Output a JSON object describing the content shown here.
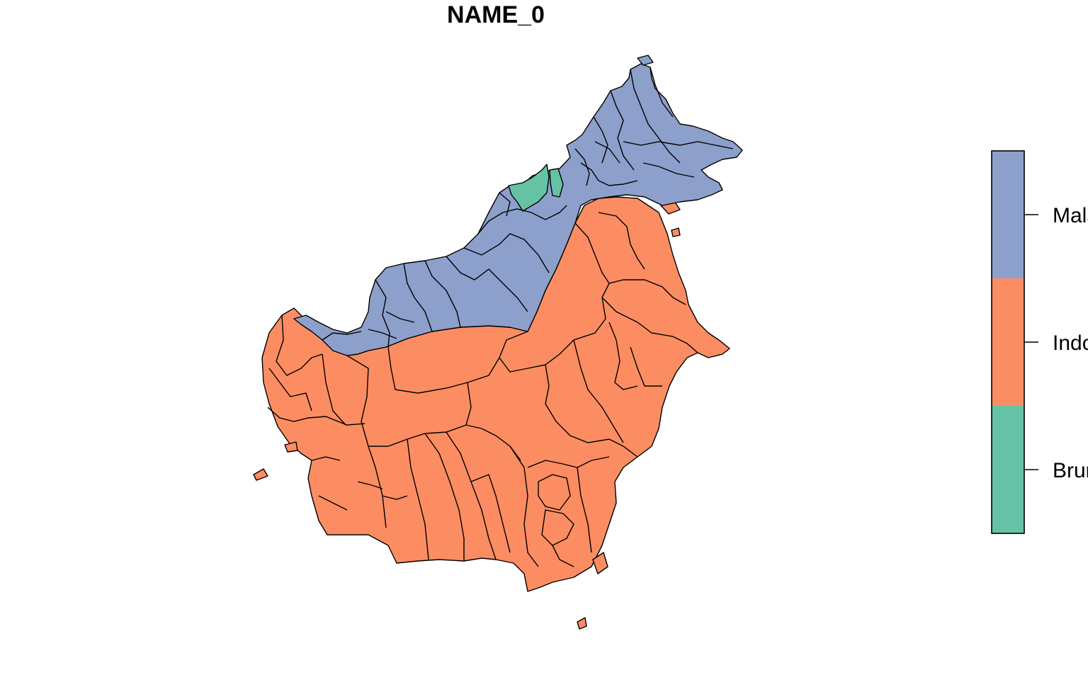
{
  "map": {
    "title": "NAME_0",
    "variable": "NAME_0",
    "regions": [
      {
        "name": "Malaysia",
        "color": "#8DA0CB"
      },
      {
        "name": "Indonesia",
        "color": "#FC8D62"
      },
      {
        "name": "Brunei",
        "color": "#66C2A5"
      }
    ]
  },
  "legend": {
    "items": [
      {
        "label": "Malaysia",
        "color": "#8DA0CB"
      },
      {
        "label": "Indonesia",
        "color": "#FC8D62"
      },
      {
        "label": "Brunei",
        "color": "#66C2A5"
      }
    ]
  }
}
